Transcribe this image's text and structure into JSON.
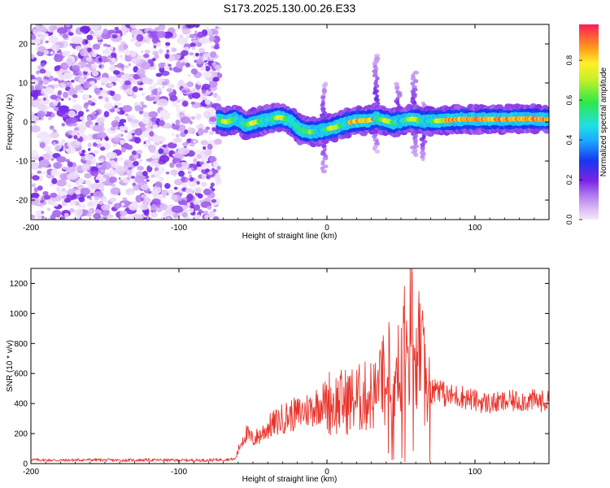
{
  "figure": {
    "title": "S173.2025.130.00.26.E33"
  },
  "colors": {
    "snr_line": "#e8342c",
    "axis": "#000000"
  },
  "colorbar": {
    "label": "Normalized spectral amplitude",
    "ticks": [
      "0.0",
      "0.2",
      "0.4",
      "0.6",
      "0.8"
    ],
    "tick_values": [
      0.0,
      0.2,
      0.4,
      0.6,
      0.8
    ],
    "range": [
      0,
      0.98
    ],
    "colormap": "rainbow (magenta-blue-cyan-green-yellow-red)"
  },
  "chart_data": [
    {
      "type": "heatmap",
      "title": "S173.2025.130.00.26.E33",
      "xlabel": "Height of straight line (km)",
      "ylabel": "Frequency (Hz)",
      "xlim": [
        -200,
        150
      ],
      "ylim": [
        -25,
        25
      ],
      "x_ticks": [
        -200,
        -100,
        0,
        100
      ],
      "x_tick_labels": [
        "-200",
        "-100",
        "0",
        "100"
      ],
      "y_ticks": [
        -20,
        -10,
        0,
        10,
        20
      ],
      "y_tick_labels": [
        "-20",
        "-10",
        "0",
        "10",
        "20"
      ],
      "noise_region_x": [
        -200,
        -73
      ],
      "ridge": {
        "x": [
          -73,
          -68,
          -62,
          -55,
          -48,
          -40,
          -32,
          -25,
          -18,
          -12,
          -6,
          0,
          5,
          12,
          20,
          28,
          33,
          38,
          45,
          52,
          58,
          64,
          70,
          80,
          90,
          100,
          110,
          120,
          130,
          140,
          150
        ],
        "y": [
          0.5,
          0,
          0.8,
          -0.8,
          0,
          0.6,
          1.2,
          0.5,
          -2.0,
          -2.6,
          -2.4,
          -1.8,
          -1.4,
          -0.4,
          0.3,
          0.4,
          1.0,
          0.5,
          -0.2,
          0.4,
          0.8,
          0.2,
          0.2,
          0.4,
          0.7,
          0.7,
          0.7,
          0.7,
          0.8,
          0.8,
          0.6
        ]
      },
      "vertical_streaks": [
        {
          "x": -2,
          "y_range": [
            -13,
            10
          ]
        },
        {
          "x": 33,
          "y_range": [
            -8,
            17
          ]
        },
        {
          "x": 48,
          "y_range": [
            -4,
            10
          ]
        },
        {
          "x": 59,
          "y_range": [
            -9,
            13
          ]
        },
        {
          "x": 65,
          "y_range": [
            -10,
            5
          ]
        }
      ]
    },
    {
      "type": "line",
      "xlabel": "Height of straight line (km)",
      "ylabel": "SNR (10 * v/v)",
      "xlim": [
        -200,
        150
      ],
      "ylim": [
        0,
        1300
      ],
      "x_ticks": [
        -200,
        -100,
        0,
        100
      ],
      "x_tick_labels": [
        "-200",
        "-100",
        "0",
        "100"
      ],
      "y_ticks": [
        0,
        200,
        400,
        600,
        800,
        1000,
        1200
      ],
      "y_tick_labels": [
        "0",
        "200",
        "400",
        "600",
        "800",
        "1000",
        "1200"
      ],
      "series": [
        {
          "x": [
            -200,
            -180,
            -160,
            -140,
            -120,
            -100,
            -80,
            -62,
            -58,
            -55,
            -50,
            -45,
            -40,
            -35,
            -30,
            -25,
            -20,
            -15,
            -10,
            -5,
            0,
            5,
            10,
            15,
            20,
            25,
            30,
            35,
            38,
            40,
            42,
            45,
            48,
            50,
            52,
            55,
            57,
            60,
            63,
            66,
            70,
            75,
            80,
            90,
            100,
            110,
            120,
            130,
            140,
            150
          ],
          "y": [
            25,
            22,
            25,
            22,
            24,
            22,
            23,
            30,
            140,
            200,
            160,
            190,
            240,
            270,
            300,
            320,
            330,
            350,
            370,
            400,
            420,
            400,
            410,
            420,
            430,
            440,
            460,
            470,
            560,
            330,
            640,
            460,
            780,
            600,
            830,
            520,
            1290,
            450,
            860,
            560,
            470,
            520,
            450,
            450,
            420,
            400,
            410,
            420,
            420,
            410
          ]
        }
      ]
    }
  ]
}
